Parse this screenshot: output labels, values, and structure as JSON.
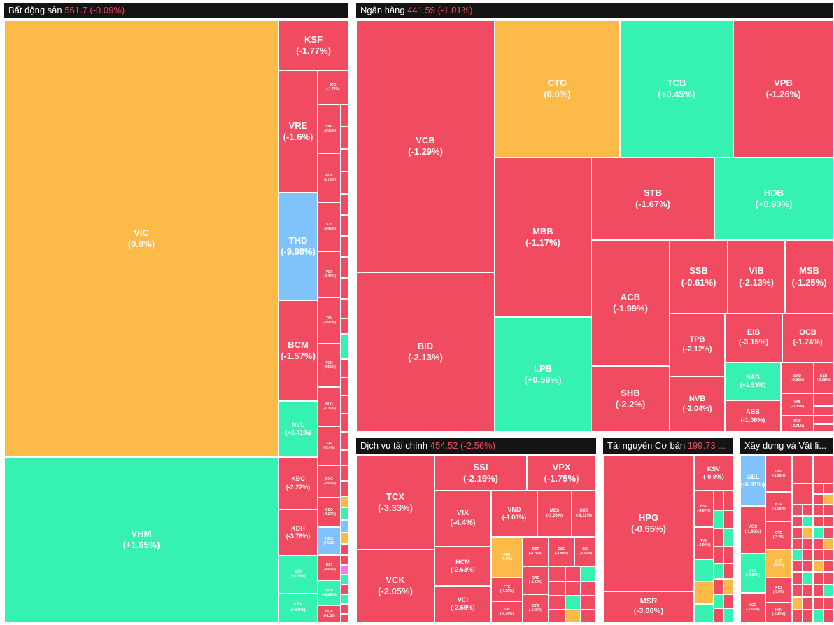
{
  "colors": {
    "down": "#f04b60",
    "up": "#35f2b2",
    "flat": "#fcbb48",
    "floor": "#80c3fb",
    "ceiling": "#f47bef",
    "header_bg": "#141414"
  },
  "sectors": {
    "bds": {
      "name": "Bất động sản",
      "index": "561.7 (-0.09%)",
      "tiles": {
        "VIC": {
          "s": "VIC",
          "c": "(0.0%)"
        },
        "VHM": {
          "s": "VHM",
          "c": "(+1.65%)"
        },
        "KSF": {
          "s": "KSF",
          "c": "(-1.77%)"
        },
        "VRE": {
          "s": "VRE",
          "c": "(-1.6%)"
        },
        "THD": {
          "s": "THD",
          "c": "(-9.98%)"
        },
        "BCM": {
          "s": "BCM",
          "c": "(-1.57%)"
        },
        "NVL": {
          "s": "NVL",
          "c": "(+0.41%)"
        },
        "KBC": {
          "s": "KBC",
          "c": "(-2.22%)"
        },
        "KDH": {
          "s": "KDH",
          "c": "(-3.76%)"
        },
        "VPI": {
          "s": "VPI",
          "c": "(+0.33%)"
        },
        "CRV": {
          "s": "CRV",
          "c": "(+3.0%)"
        },
        "IDC": {
          "s": "IDC",
          "c": "(-1.72%)"
        },
        "SXG": {
          "s": "SXG",
          "c": "(-2.06%)"
        },
        "PDR": {
          "s": "PDR",
          "c": "(-1.72%)"
        },
        "SJS": {
          "s": "SJS",
          "c": "(-0.42%)"
        },
        "VEF": {
          "s": "VEF",
          "c": "(-0.47%)"
        },
        "TAL": {
          "s": "TAL",
          "c": "(-3.02%)"
        },
        "TCH": {
          "s": "TCH",
          "c": "(-4.55%)"
        },
        "NLG": {
          "s": "NLG",
          "c": "(-1.36%)"
        },
        "SIP": {
          "s": "SIP",
          "c": "(-0.4%)"
        },
        "DXG": {
          "s": "DXG",
          "c": "(-2.66%)"
        },
        "CEO": {
          "s": "CEO",
          "c": "(-4.17%)"
        },
        "HDG": {
          "s": "HDG",
          "c": "(+0.63)"
        },
        "DIG": {
          "s": "DIG",
          "c": "(-4.66%)"
        },
        "VCN": {
          "s": "VCN",
          "c": "(+1.28%)"
        },
        "HQC": {
          "s": "HQC",
          "c": "(+1.08)"
        }
      }
    },
    "nh": {
      "name": "Ngân hàng",
      "index": "441.59 (-1.01%)",
      "tiles": {
        "VCB": {
          "s": "VCB",
          "c": "(-1.29%)"
        },
        "BID": {
          "s": "BID",
          "c": "(-2.13%)"
        },
        "CTG": {
          "s": "CTG",
          "c": "(0.0%)"
        },
        "TCB": {
          "s": "TCB",
          "c": "(+0.45%)"
        },
        "VPB": {
          "s": "VPB",
          "c": "(-1.26%)"
        },
        "MBB": {
          "s": "MBB",
          "c": "(-1.17%)"
        },
        "LPB": {
          "s": "LPB",
          "c": "(+0.59%)"
        },
        "STB": {
          "s": "STB",
          "c": "(-1.67%)"
        },
        "HDB": {
          "s": "HDB",
          "c": "(+0.93%)"
        },
        "ACB": {
          "s": "ACB",
          "c": "(-1.99%)"
        },
        "SHB": {
          "s": "SHB",
          "c": "(-2.2%)"
        },
        "SSB": {
          "s": "SSB",
          "c": "(-0.61%)"
        },
        "VIB": {
          "s": "VIB",
          "c": "(-2.13%)"
        },
        "MSB": {
          "s": "MSB",
          "c": "(-1.25%)"
        },
        "TPB": {
          "s": "TPB",
          "c": "(-2.12%)"
        },
        "EIB": {
          "s": "EIB",
          "c": "(-3.15%)"
        },
        "OCB": {
          "s": "OCB",
          "c": "(-1.74%)"
        },
        "NVB": {
          "s": "NVB",
          "c": "(-2.04%)"
        },
        "NAB": {
          "s": "NAB",
          "c": "(+1.53%)"
        },
        "ABB": {
          "s": "ABB",
          "c": "(-1.06%)"
        },
        "BAB": {
          "s": "BAB",
          "c": "(-0.85%)"
        },
        "KLB": {
          "s": "KLB",
          "c": "(-3.58%)"
        },
        "VAB": {
          "s": "VAB",
          "c": "(-3.03%)"
        },
        "BVB": {
          "s": "BVB",
          "c": "(-3.71%)"
        }
      }
    },
    "dvtc": {
      "name": "Dịch vụ tài chính",
      "index": "454.52 (-2.56%)",
      "tiles": {
        "TCX": {
          "s": "TCX",
          "c": "(-3.33%)"
        },
        "VCK": {
          "s": "VCK",
          "c": "(-2.05%)"
        },
        "SSI": {
          "s": "SSI",
          "c": "(-2.19%)"
        },
        "VPX": {
          "s": "VPX",
          "c": "(-1.75%)"
        },
        "VIX": {
          "s": "VIX",
          "c": "(-4.4%)"
        },
        "VND": {
          "s": "VND",
          "c": "(-1.09%)"
        },
        "MBS": {
          "s": "MBS",
          "c": "(-3.26%)"
        },
        "SHS": {
          "s": "SHS",
          "c": "(-3.11%)"
        },
        "HCM": {
          "s": "HCM",
          "c": "(-2.63%)"
        },
        "VCI": {
          "s": "VCI",
          "c": "(-2.59%)"
        },
        "FBE": {
          "s": "FBE",
          "c": "(0.0%)"
        },
        "DST": {
          "s": "DST",
          "c": "(-4.76%)"
        },
        "DSE": {
          "s": "DSE",
          "c": "(-4.88%)"
        },
        "BSI": {
          "s": "BSI",
          "c": "(-3.56%)"
        },
        "FTS": {
          "s": "FTS",
          "c": "(-4.39%)"
        },
        "ORS": {
          "s": "ORS",
          "c": "(-4.33%)"
        },
        "TIN": {
          "s": "TIN",
          "c": "(-4.74%)"
        },
        "CTS": {
          "s": "CTS",
          "c": "(-4.65%)"
        }
      }
    },
    "tn": {
      "name": "Tài nguyên Cơ bản",
      "index": "199.73 ...",
      "tiles": {
        "HPG": {
          "s": "HPG",
          "c": "(-0.65%)"
        },
        "MSR": {
          "s": "MSR",
          "c": "(-3.06%)"
        },
        "KSV": {
          "s": "KSV",
          "c": "(-0.9%)"
        },
        "HSG": {
          "s": "HSG",
          "c": "(-4.67%)"
        },
        "TVN": {
          "s": "TVN",
          "c": "(-4.95%)"
        }
      }
    },
    "xd": {
      "name": "Xây dựng và Vật li...",
      "tiles": {
        "GEL": {
          "s": "GEL",
          "c": "(-6.91%)"
        },
        "VGC": {
          "s": "VGC",
          "c": "(-1.96%)"
        },
        "CC1": {
          "s": "CC1",
          "c": "(+4.87%)"
        },
        "VCG": {
          "s": "VCG",
          "c": "(-2.66%)"
        },
        "GMZ": {
          "s": "GMZ",
          "c": "(-1.08%)"
        },
        "HTP": {
          "s": "HTP",
          "c": "(-1.58%)"
        },
        "CTD": {
          "s": "CTD",
          "c": "(-3.2%)"
        },
        "SJG": {
          "s": "SJG",
          "c": "(0.0%)"
        },
        "PC1": {
          "s": "PC1",
          "c": "(-5.0%)"
        },
        "HHV": {
          "s": "HHV",
          "c": "(-5.41%)"
        }
      }
    }
  }
}
